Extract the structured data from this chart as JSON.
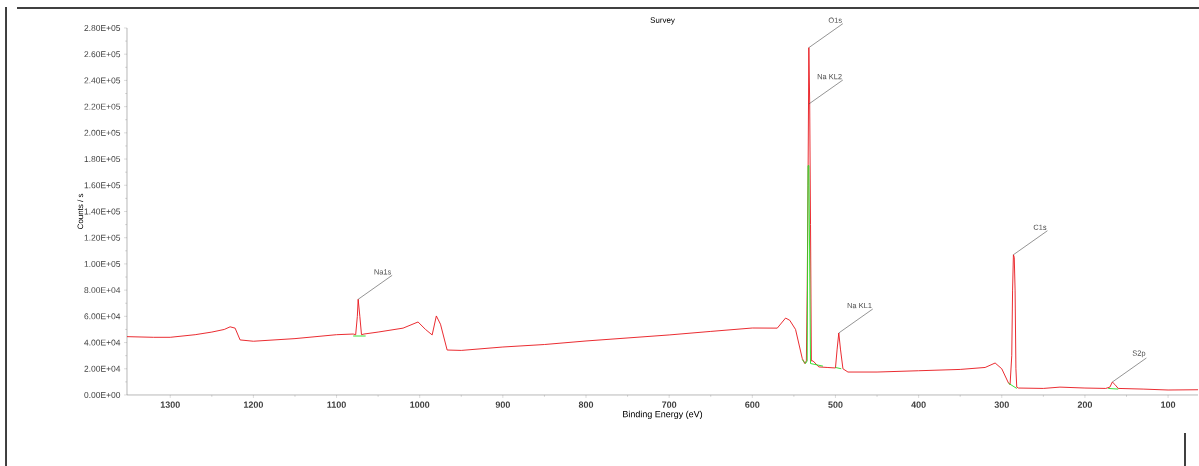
{
  "chart_data": {
    "type": "line",
    "title": "Survey",
    "xlabel": "Binding Energy (eV)",
    "ylabel": "Counts / s",
    "xlim": [
      1352,
      64
    ],
    "ylim": [
      0,
      280000
    ],
    "xticks": [
      1300,
      1200,
      1100,
      1000,
      900,
      800,
      700,
      600,
      500,
      400,
      300,
      200,
      100
    ],
    "yticks": [
      {
        "value": 0,
        "label": "0.00E+00"
      },
      {
        "value": 20000,
        "label": "2.00E+04"
      },
      {
        "value": 40000,
        "label": "4.00E+04"
      },
      {
        "value": 60000,
        "label": "6.00E+04"
      },
      {
        "value": 80000,
        "label": "8.00E+04"
      },
      {
        "value": 100000,
        "label": "1.00E+05"
      },
      {
        "value": 120000,
        "label": "1.20E+05"
      },
      {
        "value": 140000,
        "label": "1.40E+05"
      },
      {
        "value": 160000,
        "label": "1.60E+05"
      },
      {
        "value": 180000,
        "label": "1.80E+05"
      },
      {
        "value": 200000,
        "label": "2.00E+05"
      },
      {
        "value": 220000,
        "label": "2.20E+05"
      },
      {
        "value": 240000,
        "label": "2.40E+05"
      },
      {
        "value": 260000,
        "label": "2.60E+05"
      },
      {
        "value": 280000,
        "label": "2.80E+05"
      }
    ],
    "grid": false,
    "marker": "none",
    "line_style": "solid",
    "series": [
      {
        "color": "#e8141a",
        "x": [
          1352,
          1320,
          1300,
          1270,
          1250,
          1235,
          1228,
          1222,
          1216,
          1200,
          1150,
          1100,
          1080,
          1077,
          1075,
          1074,
          1072,
          1070,
          1067,
          1050,
          1020,
          1002,
          993,
          985,
          980,
          975,
          967,
          950,
          900,
          850,
          800,
          750,
          700,
          650,
          600,
          570,
          560,
          555,
          548,
          540,
          537,
          535,
          534,
          533,
          532,
          531,
          530,
          529,
          527,
          520,
          510,
          500,
          498,
          496,
          494,
          491,
          485,
          450,
          400,
          350,
          320,
          308,
          300,
          292,
          290,
          288,
          287,
          286,
          285,
          284,
          283,
          282,
          280,
          250,
          230,
          200,
          175,
          170,
          167,
          164,
          160,
          130,
          100,
          64
        ],
        "values": [
          44500,
          44000,
          44000,
          46000,
          48000,
          50000,
          52000,
          51000,
          42000,
          41000,
          43000,
          46000,
          46500,
          46000,
          60000,
          73000,
          60000,
          46000,
          46500,
          48000,
          51000,
          55700,
          50000,
          45800,
          60300,
          54000,
          34300,
          34000,
          36600,
          38500,
          41200,
          43500,
          45800,
          48500,
          51100,
          51000,
          58700,
          57000,
          50000,
          28000,
          24000,
          26000,
          80000,
          160000,
          265000,
          222000,
          130000,
          26000,
          26000,
          21400,
          21000,
          20600,
          35000,
          47300,
          35000,
          20000,
          17500,
          17500,
          18500,
          19500,
          21000,
          24400,
          20000,
          9200,
          8000,
          30000,
          80000,
          107000,
          105000,
          80000,
          20000,
          6000,
          5300,
          5000,
          6000,
          5300,
          5000,
          6000,
          9900,
          8000,
          5000,
          4500,
          3800,
          4000
        ]
      },
      {
        "color": "#22dd22",
        "x": [
          1080,
          1065
        ],
        "values": [
          45000,
          45000
        ]
      },
      {
        "color": "#22dd22",
        "x": [
          540,
          536,
          534,
          533,
          532,
          530,
          515
        ],
        "values": [
          27000,
          24000,
          26000,
          175000,
          175000,
          24000,
          22000
        ]
      },
      {
        "color": "#22dd22",
        "x": [
          500,
          493
        ],
        "values": [
          21000,
          20000
        ]
      },
      {
        "color": "#22dd22",
        "x": [
          292,
          282
        ],
        "values": [
          9000,
          5000
        ]
      },
      {
        "color": "#22dd22",
        "x": [
          172,
          160
        ],
        "values": [
          5000,
          4500
        ]
      }
    ],
    "annotations": [
      {
        "text": "O1s",
        "x": 532,
        "y": 265000
      },
      {
        "text": "Na KL2",
        "x": 532,
        "y": 222000
      },
      {
        "text": "Na1s",
        "x": 1074,
        "y": 73000
      },
      {
        "text": "Na KL1",
        "x": 496,
        "y": 47300
      },
      {
        "text": "C1s",
        "x": 286,
        "y": 107000
      },
      {
        "text": "S2p",
        "x": 167,
        "y": 9900
      }
    ]
  }
}
